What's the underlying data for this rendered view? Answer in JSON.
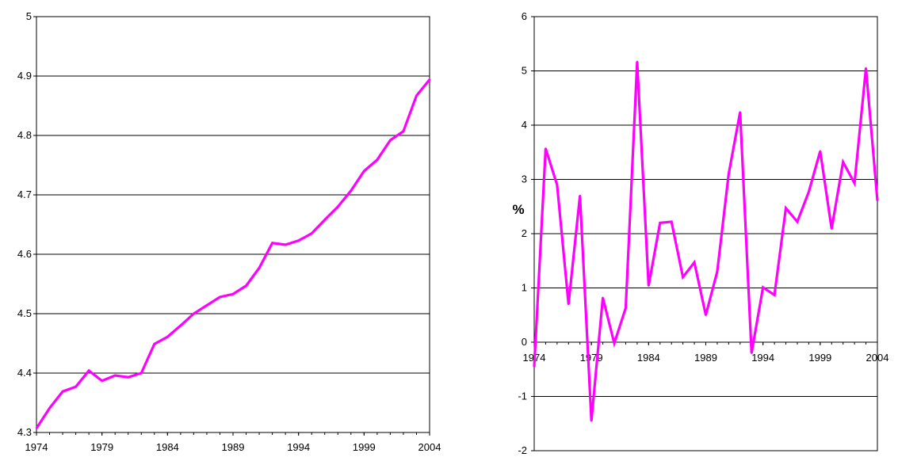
{
  "chart_data": [
    {
      "type": "line",
      "title": "",
      "xlabel": "",
      "ylabel": "",
      "x": [
        1974,
        1975,
        1976,
        1977,
        1978,
        1979,
        1980,
        1981,
        1982,
        1983,
        1984,
        1985,
        1986,
        1987,
        1988,
        1989,
        1990,
        1991,
        1992,
        1993,
        1994,
        1995,
        1996,
        1997,
        1998,
        1999,
        2000,
        2001,
        2002,
        2003,
        2004
      ],
      "series": [
        {
          "values": [
            4.307,
            4.341,
            4.369,
            4.377,
            4.404,
            4.387,
            4.396,
            4.393,
            4.4,
            4.449,
            4.461,
            4.48,
            4.5,
            4.514,
            4.528,
            4.533,
            4.547,
            4.577,
            4.619,
            4.616,
            4.623,
            4.635,
            4.658,
            4.68,
            4.707,
            4.74,
            4.759,
            4.792,
            4.807,
            4.867,
            4.894
          ],
          "color": "#ff00ff"
        }
      ],
      "ylim": [
        4.3,
        5.0
      ],
      "y_ticks": [
        "4.3",
        "4.4",
        "4.5",
        "4.6",
        "4.7",
        "4.8",
        "4.9",
        "5"
      ],
      "x_tick_labels": [
        "1974",
        "1979",
        "1984",
        "1989",
        "1994",
        "1999",
        "2004"
      ],
      "grid": true,
      "line_color": "#ff00ff",
      "legend": "none"
    },
    {
      "type": "line",
      "title": "",
      "xlabel": "",
      "ylabel": "%",
      "x": [
        1974,
        1975,
        1976,
        1977,
        1978,
        1979,
        1980,
        1981,
        1982,
        1983,
        1984,
        1985,
        1986,
        1987,
        1988,
        1989,
        1990,
        1991,
        1992,
        1993,
        1994,
        1995,
        1996,
        1997,
        1998,
        1999,
        2000,
        2001,
        2002,
        2003,
        2004
      ],
      "series": [
        {
          "values": [
            -0.45,
            3.57,
            2.9,
            0.7,
            2.7,
            -1.45,
            0.82,
            -0.02,
            0.63,
            5.17,
            1.04,
            2.2,
            2.22,
            1.2,
            1.47,
            0.5,
            1.3,
            3.1,
            4.24,
            -0.2,
            1.01,
            0.87,
            2.47,
            2.22,
            2.77,
            3.52,
            2.09,
            3.32,
            2.93,
            5.05,
            2.61
          ],
          "color": "#ff00ff"
        }
      ],
      "ylim": [
        -2,
        6
      ],
      "y_ticks": [
        "-2",
        "-1",
        "0",
        "1",
        "2",
        "3",
        "4",
        "5",
        "6"
      ],
      "x_tick_labels": [
        "1974",
        "1979",
        "1984",
        "1989",
        "1994",
        "1999",
        "2004"
      ],
      "grid": true,
      "line_color": "#ff00ff",
      "legend": "none"
    }
  ]
}
